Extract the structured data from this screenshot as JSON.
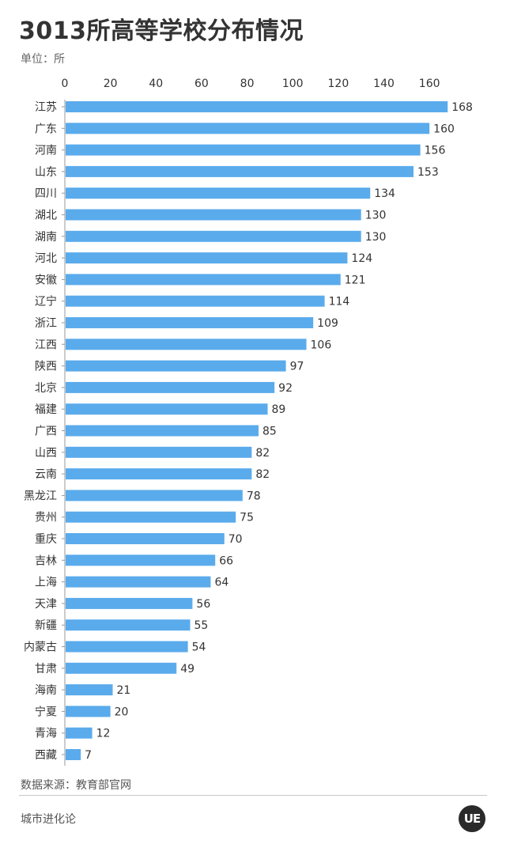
{
  "title": "3013所高等学校分布情况",
  "unit": "单位：所",
  "source": "数据来源：教育部官网",
  "brand": "城市进化论",
  "logo_text": "UE",
  "colors": {
    "bar": "#5aabec",
    "axis": "#999999"
  },
  "chart_data": {
    "type": "bar",
    "orientation": "horizontal",
    "categories": [
      "江苏",
      "广东",
      "河南",
      "山东",
      "四川",
      "湖北",
      "湖南",
      "河北",
      "安徽",
      "辽宁",
      "浙江",
      "江西",
      "陕西",
      "北京",
      "福建",
      "广西",
      "山西",
      "云南",
      "黑龙江",
      "贵州",
      "重庆",
      "吉林",
      "上海",
      "天津",
      "新疆",
      "内蒙古",
      "甘肃",
      "海南",
      "宁夏",
      "青海",
      "西藏"
    ],
    "values": [
      168,
      160,
      156,
      153,
      134,
      130,
      130,
      124,
      121,
      114,
      109,
      106,
      97,
      92,
      89,
      85,
      82,
      82,
      78,
      75,
      70,
      66,
      64,
      56,
      55,
      54,
      49,
      21,
      20,
      12,
      7
    ],
    "xticks": [
      0,
      20,
      40,
      60,
      80,
      100,
      120,
      140,
      160
    ],
    "xlim": [
      0,
      170
    ],
    "axis_position": "top",
    "grid": false,
    "data_labels": true
  }
}
